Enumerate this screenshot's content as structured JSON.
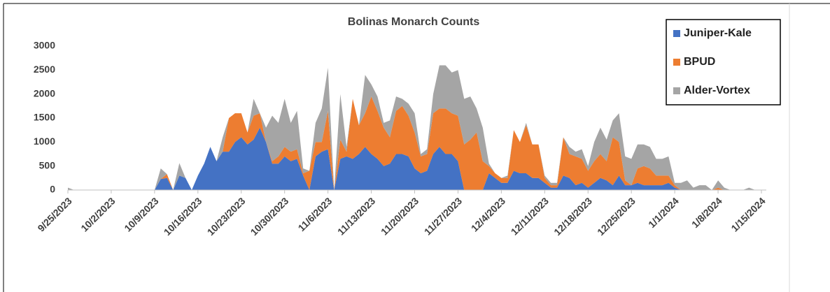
{
  "chart_data": {
    "type": "stacked-area",
    "title": "Bolinas Monarch Counts",
    "categories": [
      "9/25/2023",
      null,
      null,
      null,
      null,
      null,
      null,
      "10/2/2023",
      null,
      null,
      null,
      null,
      null,
      null,
      "10/9/2023",
      null,
      null,
      null,
      null,
      null,
      null,
      "10/16/2023",
      null,
      null,
      null,
      null,
      null,
      null,
      "10/23/2023",
      null,
      null,
      null,
      null,
      null,
      null,
      "10/30/2023",
      null,
      null,
      null,
      null,
      null,
      null,
      "11/6/2023",
      null,
      null,
      null,
      null,
      null,
      null,
      "11/13/2023",
      null,
      null,
      null,
      null,
      null,
      null,
      "11/20/2023",
      null,
      null,
      null,
      null,
      null,
      null,
      "11/27/2023",
      null,
      null,
      null,
      null,
      null,
      null,
      "12/4/2023",
      null,
      null,
      null,
      null,
      null,
      null,
      "12/11/2023",
      null,
      null,
      null,
      null,
      null,
      null,
      "12/18/2023",
      null,
      null,
      null,
      null,
      null,
      null,
      "12/25/2023",
      null,
      null,
      null,
      null,
      null,
      null,
      "1/1/2024",
      null,
      null,
      null,
      null,
      null,
      null,
      "1/8/2024",
      null,
      null,
      null,
      null,
      null,
      null,
      "1/15/2024"
    ],
    "series": [
      {
        "name": "Juniper-Kale",
        "color": "#4472c4",
        "values": [
          0,
          0,
          0,
          0,
          0,
          0,
          0,
          0,
          0,
          0,
          0,
          0,
          0,
          0,
          0,
          230,
          250,
          0,
          300,
          250,
          0,
          300,
          550,
          900,
          600,
          800,
          800,
          1000,
          1100,
          950,
          1050,
          1300,
          1000,
          550,
          550,
          700,
          600,
          650,
          300,
          0,
          700,
          800,
          850,
          0,
          650,
          700,
          650,
          750,
          900,
          750,
          650,
          500,
          550,
          750,
          750,
          700,
          450,
          350,
          400,
          750,
          900,
          750,
          750,
          600,
          0,
          0,
          0,
          0,
          350,
          250,
          150,
          150,
          400,
          350,
          350,
          250,
          250,
          150,
          50,
          50,
          300,
          250,
          100,
          150,
          50,
          150,
          250,
          200,
          100,
          300,
          100,
          100,
          150,
          100,
          100,
          100,
          100,
          150,
          50,
          0,
          0,
          0,
          0,
          0,
          0,
          0,
          0,
          0,
          0,
          0,
          0,
          0,
          0
        ]
      },
      {
        "name": "BPUD",
        "color": "#ed7d31",
        "values": [
          0,
          0,
          0,
          0,
          0,
          0,
          0,
          0,
          0,
          0,
          0,
          0,
          0,
          0,
          0,
          0,
          80,
          0,
          0,
          0,
          0,
          0,
          0,
          0,
          0,
          0,
          700,
          600,
          500,
          250,
          500,
          300,
          0,
          50,
          150,
          200,
          200,
          200,
          50,
          400,
          300,
          200,
          800,
          0,
          400,
          100,
          1250,
          600,
          700,
          1200,
          1000,
          800,
          550,
          900,
          1000,
          850,
          750,
          350,
          350,
          850,
          800,
          950,
          850,
          950,
          950,
          1050,
          1200,
          600,
          150,
          100,
          100,
          100,
          850,
          650,
          1000,
          700,
          700,
          100,
          50,
          50,
          800,
          500,
          600,
          500,
          350,
          450,
          500,
          400,
          1000,
          700,
          100,
          0,
          300,
          400,
          350,
          200,
          200,
          150,
          50,
          0,
          0,
          0,
          0,
          0,
          0,
          50,
          0,
          0,
          0,
          0,
          0,
          0,
          0
        ]
      },
      {
        "name": "Alder-Vortex",
        "color": "#a5a5a5",
        "values": [
          50,
          0,
          0,
          0,
          0,
          0,
          0,
          0,
          0,
          0,
          0,
          0,
          0,
          0,
          0,
          220,
          0,
          0,
          260,
          0,
          0,
          0,
          0,
          0,
          0,
          300,
          0,
          0,
          0,
          0,
          350,
          0,
          300,
          950,
          700,
          1000,
          600,
          800,
          100,
          0,
          400,
          700,
          900,
          0,
          950,
          100,
          0,
          0,
          800,
          250,
          300,
          100,
          350,
          300,
          150,
          250,
          400,
          50,
          100,
          400,
          900,
          900,
          850,
          950,
          950,
          900,
          500,
          700,
          50,
          0,
          0,
          50,
          0,
          0,
          50,
          0,
          0,
          50,
          50,
          50,
          0,
          150,
          100,
          200,
          100,
          400,
          550,
          450,
          350,
          600,
          500,
          550,
          500,
          450,
          450,
          350,
          350,
          400,
          50,
          150,
          200,
          50,
          100,
          100,
          0,
          150,
          50,
          0,
          0,
          0,
          50,
          0,
          0
        ]
      }
    ],
    "ylim": [
      0,
      3000
    ],
    "yticks": [
      0,
      500,
      1000,
      1500,
      2000,
      2500,
      3000
    ],
    "grid": false,
    "legend": "top-right"
  }
}
